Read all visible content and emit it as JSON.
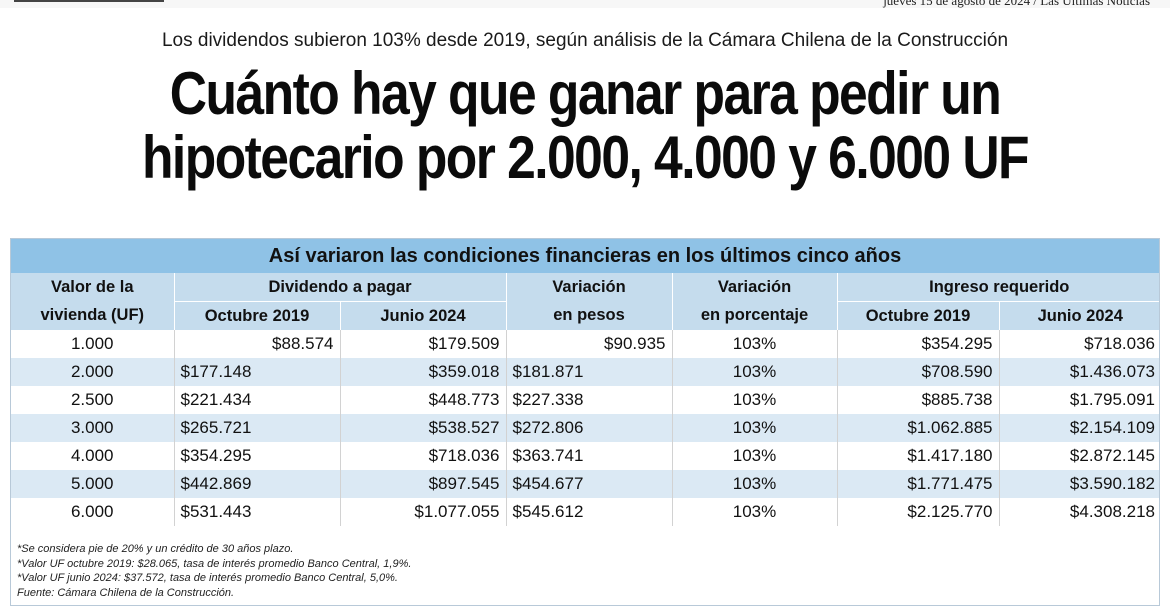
{
  "top": {
    "date_line": "jueves 15 de agosto de 2024 / Las Últimas Noticias"
  },
  "article": {
    "subtitle": "Los dividendos subieron 103% desde 2019, según análisis de la Cámara Chilena de la Construcción",
    "headline_line1": "Cuánto hay que ganar para pedir un",
    "headline_line2": "hipotecario por 2.000, 4.000 y 6.000 UF"
  },
  "table": {
    "banner": "Así variaron las condiciones financieras en los últimos cinco años",
    "headers": {
      "valor_line1": "Valor de la",
      "valor_line2": "vivienda (UF)",
      "dividendo": "Dividendo a pagar",
      "dividendo_oct": "Octubre 2019",
      "dividendo_jun": "Junio 2024",
      "var_pesos_line1": "Variación",
      "var_pesos_line2": "en pesos",
      "var_pct_line1": "Variación",
      "var_pct_line2": "en porcentaje",
      "ingreso": "Ingreso requerido",
      "ingreso_oct": "Octubre 2019",
      "ingreso_jun": "Junio 2024"
    },
    "rows": [
      {
        "valor": "1.000",
        "div_2019": "$88.574",
        "div_2024": "$179.509",
        "var_pesos": "$90.935",
        "var_pct": "103%",
        "ing_2019": "$354.295",
        "ing_2024": "$718.036"
      },
      {
        "valor": "2.000",
        "div_2019": "$177.148",
        "div_2024": "$359.018",
        "var_pesos": "$181.871",
        "var_pct": "103%",
        "ing_2019": "$708.590",
        "ing_2024": "$1.436.073"
      },
      {
        "valor": "2.500",
        "div_2019": "$221.434",
        "div_2024": "$448.773",
        "var_pesos": "$227.338",
        "var_pct": "103%",
        "ing_2019": "$885.738",
        "ing_2024": "$1.795.091"
      },
      {
        "valor": "3.000",
        "div_2019": "$265.721",
        "div_2024": "$538.527",
        "var_pesos": "$272.806",
        "var_pct": "103%",
        "ing_2019": "$1.062.885",
        "ing_2024": "$2.154.109"
      },
      {
        "valor": "4.000",
        "div_2019": "$354.295",
        "div_2024": "$718.036",
        "var_pesos": "$363.741",
        "var_pct": "103%",
        "ing_2019": "$1.417.180",
        "ing_2024": "$2.872.145"
      },
      {
        "valor": "5.000",
        "div_2019": "$442.869",
        "div_2024": "$897.545",
        "var_pesos": "$454.677",
        "var_pct": "103%",
        "ing_2019": "$1.771.475",
        "ing_2024": "$3.590.182"
      },
      {
        "valor": "6.000",
        "div_2019": "$531.443",
        "div_2024": "$1.077.055",
        "var_pesos": "$545.612",
        "var_pct": "103%",
        "ing_2019": "$2.125.770",
        "ing_2024": "$4.308.218"
      }
    ],
    "notes": [
      "*Se considera pie de 20% y un crédito de 30 años plazo.",
      "*Valor UF octubre 2019: $28.065, tasa de interés promedio Banco Central, 1,9%.",
      "*Valor UF junio 2024: $37.572, tasa de interés promedio Banco Central, 5,0%.",
      "Fuente: Cámara Chilena de la Construcción."
    ]
  }
}
